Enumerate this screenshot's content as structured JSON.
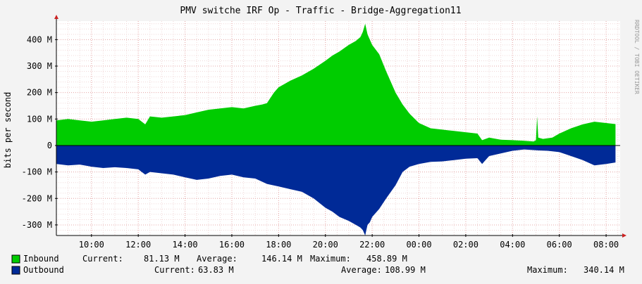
{
  "chart_data": {
    "type": "area",
    "title": "PMV switche IRF Op - Traffic - Bridge-Aggregation11",
    "watermark": "RRDTOOL / TOBI OETIKER",
    "ylabel": "bits per second",
    "xlabel": "",
    "ylim": [
      -340,
      470
    ],
    "yticks": [
      {
        "value": 400,
        "label": "400 M"
      },
      {
        "value": 300,
        "label": "300 M"
      },
      {
        "value": 200,
        "label": "200 M"
      },
      {
        "value": 100,
        "label": "100 M"
      },
      {
        "value": 0,
        "label": "0"
      },
      {
        "value": -100,
        "label": "-100 M"
      },
      {
        "value": -200,
        "label": "-200 M"
      },
      {
        "value": -300,
        "label": "-300 M"
      }
    ],
    "xrange_hours": [
      8.5,
      32.6
    ],
    "xticks": [
      {
        "hour": 10,
        "label": "10:00"
      },
      {
        "hour": 12,
        "label": "12:00"
      },
      {
        "hour": 14,
        "label": "14:00"
      },
      {
        "hour": 16,
        "label": "16:00"
      },
      {
        "hour": 18,
        "label": "18:00"
      },
      {
        "hour": 20,
        "label": "20:00"
      },
      {
        "hour": 22,
        "label": "22:00"
      },
      {
        "hour": 24,
        "label": "00:00"
      },
      {
        "hour": 26,
        "label": "02:00"
      },
      {
        "hour": 28,
        "label": "04:00"
      },
      {
        "hour": 30,
        "label": "06:00"
      },
      {
        "hour": 32,
        "label": "08:00"
      }
    ],
    "grid": true,
    "series": [
      {
        "name": "Inbound",
        "color": "#00cc00",
        "x": [
          8.5,
          9.0,
          9.5,
          10.0,
          10.5,
          11.0,
          11.5,
          12.0,
          12.3,
          12.5,
          13.0,
          13.5,
          14.0,
          14.5,
          15.0,
          15.5,
          16.0,
          16.5,
          17.0,
          17.3,
          17.5,
          17.8,
          18.0,
          18.5,
          19.0,
          19.5,
          20.0,
          20.3,
          20.6,
          21.0,
          21.3,
          21.5,
          21.6,
          21.7,
          21.8,
          21.9,
          22.0,
          22.3,
          22.6,
          23.0,
          23.3,
          23.6,
          24.0,
          24.5,
          25.0,
          25.5,
          26.0,
          26.5,
          26.7,
          27.0,
          27.5,
          28.0,
          28.5,
          28.9,
          29.0,
          29.05,
          29.1,
          29.3,
          29.7,
          30.0,
          30.5,
          31.0,
          31.5,
          32.0,
          32.4
        ],
        "values": [
          95,
          100,
          95,
          90,
          95,
          100,
          105,
          100,
          80,
          110,
          105,
          110,
          115,
          125,
          135,
          140,
          145,
          140,
          150,
          155,
          160,
          200,
          220,
          245,
          265,
          290,
          320,
          340,
          355,
          380,
          395,
          410,
          430,
          460,
          420,
          400,
          380,
          345,
          280,
          200,
          155,
          120,
          85,
          65,
          60,
          55,
          50,
          45,
          20,
          30,
          22,
          20,
          18,
          15,
          20,
          110,
          30,
          25,
          30,
          45,
          65,
          80,
          90,
          85,
          81
        ]
      },
      {
        "name": "Outbound",
        "color": "#002a97",
        "x": [
          8.5,
          9.0,
          9.5,
          10.0,
          10.5,
          11.0,
          11.5,
          12.0,
          12.3,
          12.5,
          13.0,
          13.5,
          14.0,
          14.5,
          15.0,
          15.5,
          16.0,
          16.5,
          17.0,
          17.5,
          18.0,
          18.5,
          19.0,
          19.5,
          20.0,
          20.3,
          20.6,
          21.0,
          21.3,
          21.5,
          21.6,
          21.7,
          21.8,
          21.9,
          22.0,
          22.3,
          22.6,
          23.0,
          23.3,
          23.6,
          24.0,
          24.5,
          25.0,
          25.5,
          26.0,
          26.5,
          26.7,
          27.0,
          27.5,
          28.0,
          28.5,
          29.0,
          29.5,
          30.0,
          30.5,
          31.0,
          31.5,
          32.0,
          32.4
        ],
        "values": [
          -70,
          -75,
          -72,
          -80,
          -85,
          -82,
          -85,
          -90,
          -110,
          -100,
          -105,
          -110,
          -120,
          -130,
          -125,
          -115,
          -110,
          -120,
          -125,
          -145,
          -155,
          -165,
          -175,
          -200,
          -235,
          -250,
          -270,
          -285,
          -300,
          -310,
          -320,
          -340,
          -300,
          -290,
          -270,
          -240,
          -200,
          -150,
          -100,
          -80,
          -70,
          -62,
          -60,
          -55,
          -50,
          -48,
          -70,
          -40,
          -30,
          -20,
          -15,
          -18,
          -20,
          -25,
          -40,
          -55,
          -75,
          -70,
          -64
        ]
      }
    ],
    "legend": [
      {
        "name": "Inbound",
        "color": "#00cc00",
        "current_label": "Current:",
        "current": "81.13 M",
        "average_label": "Average:",
        "average": "146.14 M",
        "maximum_label": "Maximum:",
        "maximum": "458.89 M"
      },
      {
        "name": "Outbound",
        "color": "#002a97",
        "current_label": "Current:",
        "current": "63.83 M",
        "average_label": "Average:",
        "average": "108.99 M",
        "maximum_label": "Maximum:",
        "maximum": "340.14 M"
      }
    ]
  }
}
